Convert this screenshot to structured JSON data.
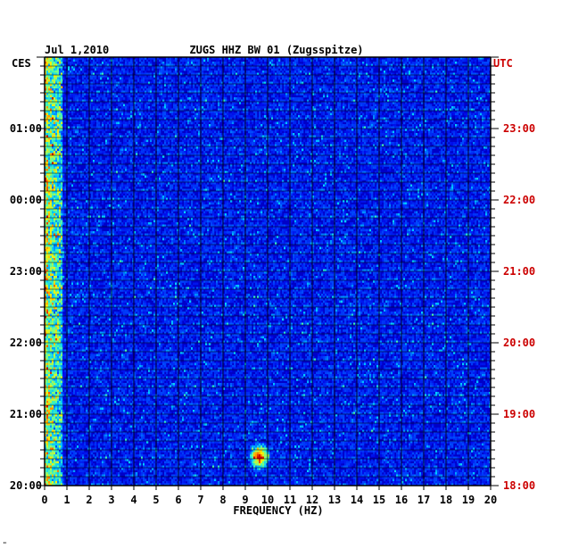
{
  "chart_data": {
    "type": "heatmap",
    "date_label": "Jul 1,2010",
    "title": "ZUGS HHZ BW 01 (Zugsspitze)",
    "xlabel": "FREQUENCY (HZ)",
    "left_zone": "CES",
    "right_zone": "UTC",
    "xlim": [
      0,
      20
    ],
    "x_ticks": [
      "0",
      "1",
      "2",
      "3",
      "4",
      "5",
      "6",
      "7",
      "8",
      "9",
      "10",
      "11",
      "12",
      "13",
      "14",
      "15",
      "16",
      "17",
      "18",
      "19",
      "20"
    ],
    "left_time_labels": [
      "01:00",
      "00:00",
      "23:00",
      "22:00",
      "21:00",
      "20:00"
    ],
    "right_time_labels": [
      "23:00",
      "22:00",
      "21:00",
      "20:00",
      "19:00",
      "18:00"
    ],
    "rows": 48,
    "event": {
      "frequency_hz": 9.6,
      "time_utc": "18:25"
    },
    "colors": {
      "background": "#0000c8",
      "grid": "#000000",
      "utc_label": "#cc0000"
    }
  },
  "footer_mark": "\""
}
